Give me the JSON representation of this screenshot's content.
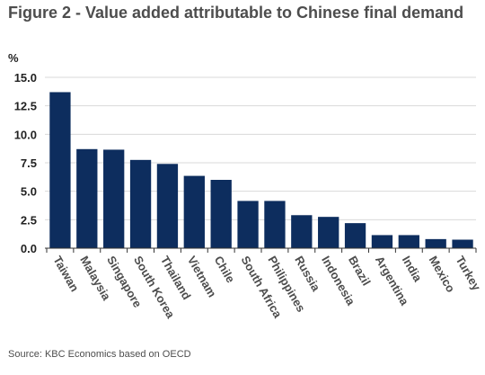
{
  "title": "Figure 2 - Value added attributable to Chinese final demand",
  "source": "Source: KBC Economics based on OECD",
  "chart_data": {
    "type": "bar",
    "title": "Figure 2 - Value added attributable to Chinese final demand",
    "ylabel": "%",
    "xlabel": "",
    "ylim": [
      0,
      15
    ],
    "yticks": [
      0,
      2.5,
      5,
      7.5,
      10,
      12.5,
      15
    ],
    "ytick_labels": [
      "0.0",
      "2.5",
      "5.0",
      "7.5",
      "10.0",
      "12.5",
      "15.0"
    ],
    "grid": true,
    "legend": "none",
    "bar_color": "#0d2d5e",
    "categories": [
      "Taiwan",
      "Malaysia",
      "Singapore",
      "South Korea",
      "Thailand",
      "Vietnam",
      "Chile",
      "South Africa",
      "Philippines",
      "Russia",
      "Indonesia",
      "Brazil",
      "Argentina",
      "India",
      "Mexico",
      "Turkey"
    ],
    "values": [
      13.7,
      8.7,
      8.65,
      7.75,
      7.4,
      6.35,
      6.0,
      4.15,
      4.15,
      2.9,
      2.75,
      2.2,
      1.15,
      1.15,
      0.8,
      0.75
    ]
  }
}
